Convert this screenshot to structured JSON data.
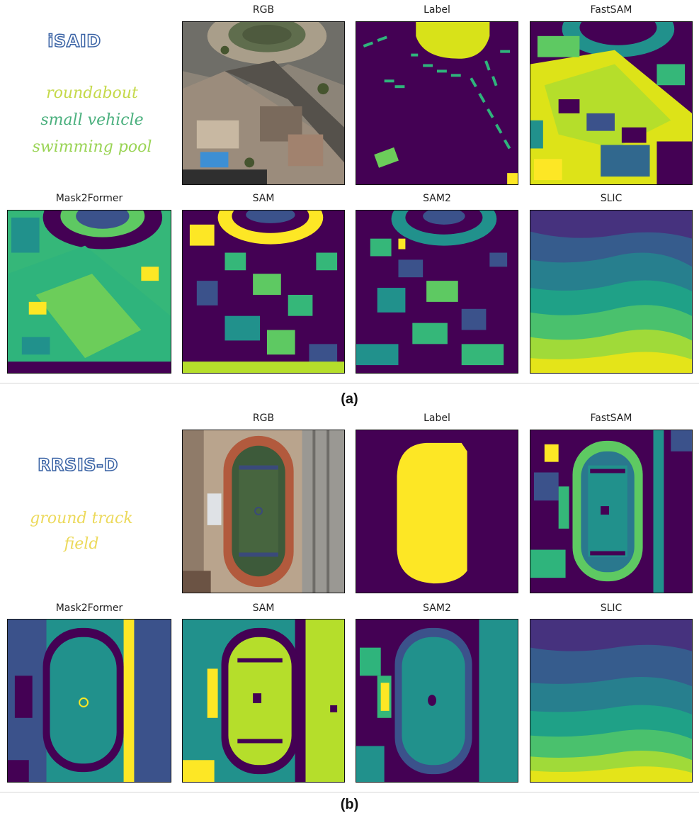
{
  "section_a": {
    "dataset": "iSAID",
    "classes": [
      {
        "text": "roundabout",
        "color": "#c5d94a"
      },
      {
        "text": "small vehicle",
        "color": "#4bb07e"
      },
      {
        "text": "swimming pool",
        "color": "#9ad455"
      }
    ],
    "titles": [
      "RGB",
      "Label",
      "FastSAM",
      "Mask2Former",
      "SAM",
      "SAM2",
      "SLIC"
    ],
    "caption": "(a)"
  },
  "section_b": {
    "dataset": "RRSIS-D",
    "classes": [
      {
        "text": "ground track",
        "color": "#ecd95a"
      },
      {
        "text": "field",
        "color": "#ecd95a"
      }
    ],
    "titles": [
      "RGB",
      "Label",
      "FastSAM",
      "Mask2Former",
      "SAM",
      "SAM2",
      "SLIC"
    ],
    "caption": "(b)"
  },
  "palette": {
    "purple": "#440154",
    "indigo": "#3b528b",
    "teal": "#21918c",
    "green": "#5ec962",
    "yellow": "#fde725"
  }
}
